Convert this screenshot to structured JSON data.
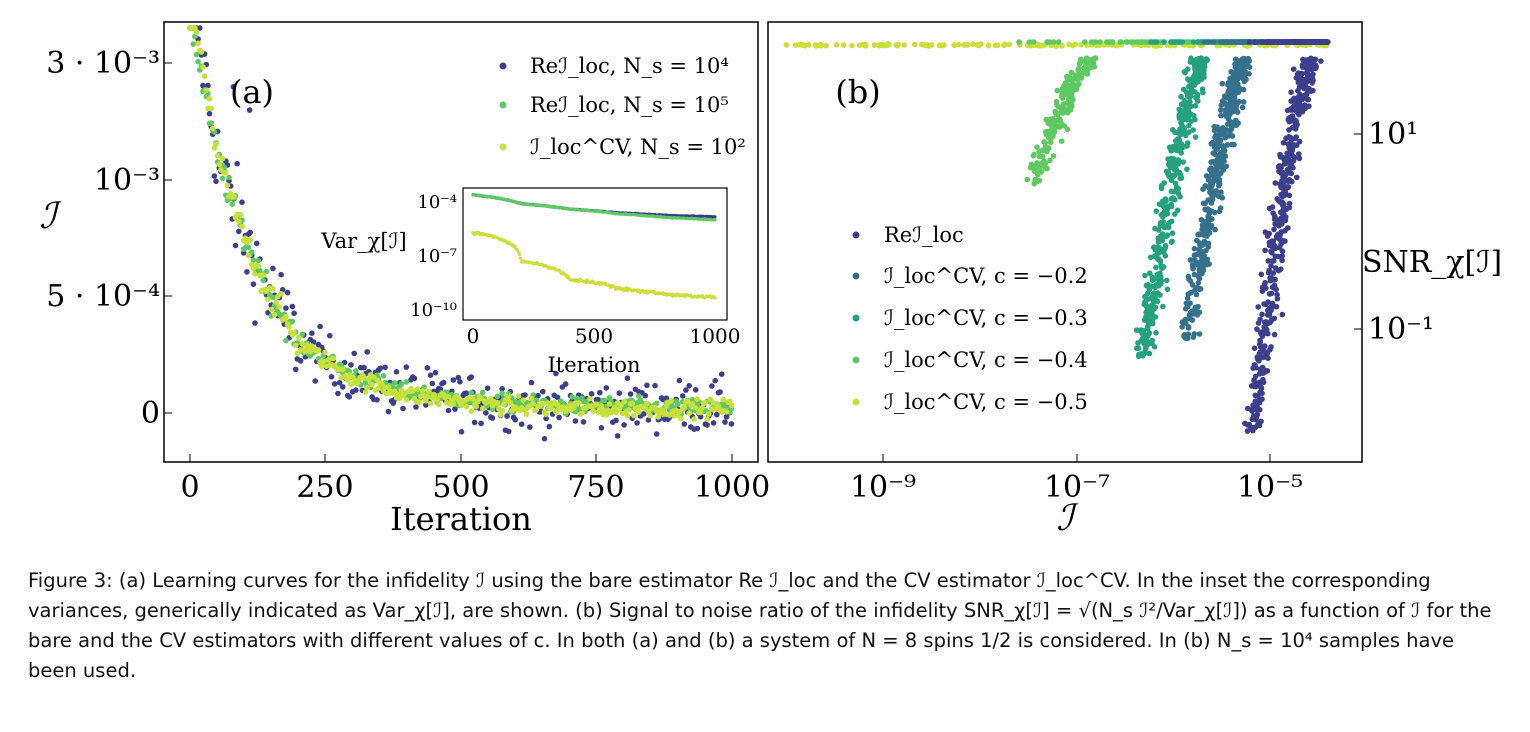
{
  "figure": {
    "panel_a": {
      "panel_label": "(a)",
      "xlabel": "Iteration",
      "ylabel": "ℐ",
      "xticks": [
        "0",
        "250",
        "500",
        "750",
        "1000"
      ],
      "yticks": [
        "0",
        "5 · 10⁻⁴",
        "10⁻³",
        "3 · 10⁻³"
      ],
      "legend": [
        {
          "label": "Reℐ_loc, N_s = 10⁴",
          "color": "#3b3f8c"
        },
        {
          "label": "Reℐ_loc, N_s = 10⁵",
          "color": "#5ec962"
        },
        {
          "label": "ℐ_loc^CV, N_s = 10²",
          "color": "#c8e03a"
        }
      ],
      "inset": {
        "ylabel": "Var_χ[ℐ]",
        "xlabel": "Iteration",
        "xticks": [
          "0",
          "500",
          "1000"
        ],
        "yticks": [
          "10⁻⁴",
          "10⁻⁷",
          "10⁻¹⁰"
        ]
      }
    },
    "panel_b": {
      "panel_label": "(b)",
      "xlabel": "ℐ",
      "ylabel": "SNR_χ[ℐ]",
      "xticks": [
        "10⁻⁹",
        "10⁻⁷",
        "10⁻⁵"
      ],
      "yticks": [
        "10¹",
        "10⁻¹"
      ],
      "legend": [
        {
          "label": "Reℐ_loc",
          "color": "#3b3f8c"
        },
        {
          "label": "ℐ_loc^CV, c = −0.2",
          "color": "#35718c"
        },
        {
          "label": "ℐ_loc^CV, c = −0.3",
          "color": "#26a17f"
        },
        {
          "label": "ℐ_loc^CV, c = −0.4",
          "color": "#5ec962"
        },
        {
          "label": "ℐ_loc^CV, c = −0.5",
          "color": "#c8e03a"
        }
      ]
    }
  },
  "chart_data": [
    {
      "type": "scatter",
      "panel": "(a)",
      "xlabel": "Iteration",
      "ylabel": "ℐ",
      "xlim": [
        0,
        1000
      ],
      "series": [
        {
          "name": "Reℐ_loc, N_s = 10⁴",
          "x": [
            0,
            50,
            100,
            150,
            200,
            300,
            400,
            500,
            600,
            700,
            800,
            900,
            1000
          ],
          "y": [
            0.0019,
            0.0011,
            0.00075,
            0.0005,
            0.0003,
            0.00016,
            9e-05,
            6e-05,
            4e-05,
            3e-05,
            3e-05,
            3e-05,
            3e-05
          ]
        },
        {
          "name": "Reℐ_loc, N_s = 10⁵",
          "x": [
            0,
            50,
            100,
            150,
            200,
            300,
            400,
            500,
            600,
            700,
            800,
            900,
            1000
          ],
          "y": [
            0.0017,
            0.0011,
            0.00075,
            0.0005,
            0.0003,
            0.00016,
            9e-05,
            6e-05,
            4e-05,
            3e-05,
            3e-05,
            2e-05,
            2e-05
          ]
        },
        {
          "name": "ℐ_loc^CV, N_s = 10²",
          "x": [
            0,
            50,
            100,
            150,
            200,
            300,
            400,
            500,
            600,
            700,
            800,
            900,
            1000
          ],
          "y": [
            0.0018,
            0.0011,
            0.00075,
            0.0005,
            0.0003,
            0.00015,
            8e-05,
            5e-05,
            3e-05,
            2e-05,
            2e-05,
            2e-05,
            2e-05
          ]
        }
      ]
    },
    {
      "type": "line",
      "panel": "(a) inset",
      "xlabel": "Iteration",
      "ylabel": "Var_χ[ℐ]",
      "xlim": [
        0,
        1000
      ],
      "yscale": "log",
      "series": [
        {
          "name": "Reℐ_loc, N_s = 10⁴",
          "x": [
            0,
            200,
            400,
            600,
            800,
            1000
          ],
          "y": [
            0.00025,
            8e-05,
            4e-05,
            2.5e-05,
            1.8e-05,
            1.5e-05
          ]
        },
        {
          "name": "Reℐ_loc, N_s = 10⁵",
          "x": [
            0,
            200,
            400,
            600,
            800,
            1000
          ],
          "y": [
            0.00025,
            8e-05,
            4e-05,
            2.2e-05,
            1.4e-05,
            1e-05
          ]
        },
        {
          "name": "ℐ_loc^CV, N_s = 10²",
          "x": [
            0,
            200,
            400,
            600,
            800,
            1000
          ],
          "y": [
            2e-06,
            5e-08,
            5e-09,
            1.5e-09,
            7e-10,
            5e-10
          ]
        }
      ]
    },
    {
      "type": "scatter",
      "panel": "(b)",
      "xlabel": "ℐ",
      "ylabel": "SNR_χ[ℐ]",
      "xscale": "log",
      "yscale": "log",
      "series": [
        {
          "name": "Reℐ_loc",
          "x_range": [
            6e-06,
            4e-05
          ],
          "y_range": [
            0.008,
            60
          ]
        },
        {
          "name": "ℐ_loc^CV, c = −0.2",
          "x_range": [
            1.2e-06,
            4e-05
          ],
          "y_range": [
            0.08,
            60
          ]
        },
        {
          "name": "ℐ_loc^CV, c = −0.3",
          "x_range": [
            4e-07,
            4e-05
          ],
          "y_range": [
            0.05,
            60
          ]
        },
        {
          "name": "ℐ_loc^CV, c = −0.4",
          "x_range": [
            2e-08,
            4e-05
          ],
          "y_range": [
            3,
            60
          ]
        },
        {
          "name": "ℐ_loc^CV, c = −0.5",
          "x_range": [
            1e-10,
            4e-05
          ],
          "y_range": [
            50,
            60
          ]
        }
      ]
    }
  ],
  "caption": {
    "lines": [
      "Figure 3: (a) Learning curves for the infidelity ℐ using the bare estimator Re ℐ_loc and the CV estimator ℐ_loc^CV. In the inset the corresponding variances, generically indicated as Var_χ[ℐ], are shown. (b) Signal to noise ratio of the infidelity SNR_χ[ℐ] = √(N_s ℐ²/Var_χ[ℐ]) as a function of ℐ for the bare and the CV estimators with different values of c. In both (a) and (b) a system of N = 8 spins 1/2 is considered. In (b) N_s = 10⁴ samples have been used."
    ]
  }
}
